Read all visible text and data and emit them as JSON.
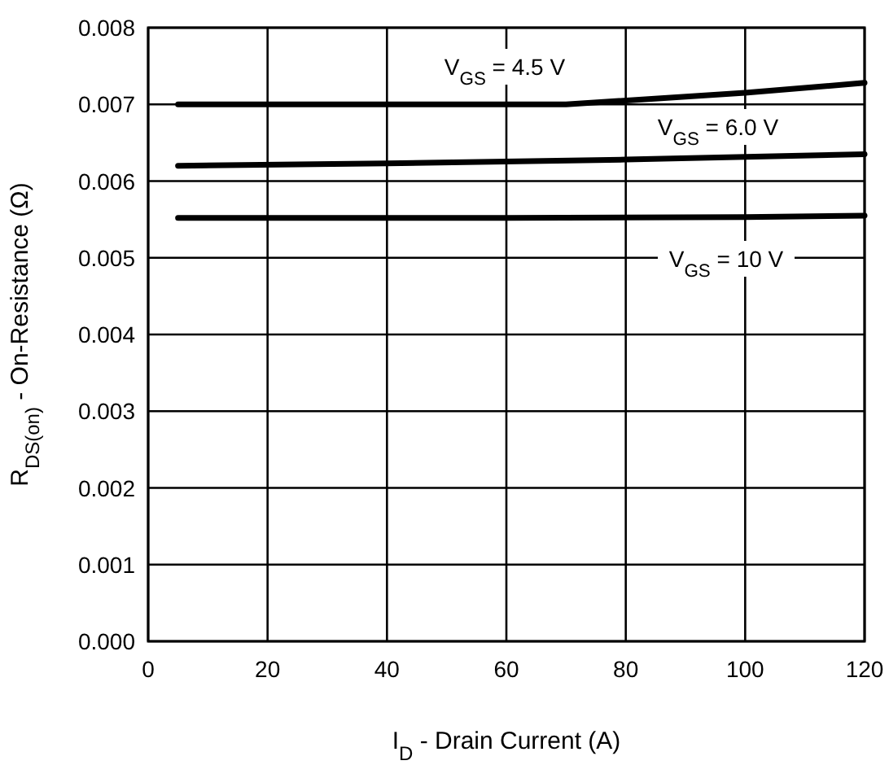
{
  "chart_data": {
    "type": "line",
    "xlabel": "I$_{D}$ - Drain Current (A)",
    "ylabel": "R$_{DS(on)}$ - On-Resistance (Ω)",
    "xlim": [
      0,
      120
    ],
    "ylim": [
      0,
      0.008
    ],
    "xticks": [
      0,
      20,
      40,
      60,
      80,
      100,
      120
    ],
    "yticks": [
      {
        "value": 0,
        "label": "0.000"
      },
      {
        "value": 0.001,
        "label": "0.001"
      },
      {
        "value": 0.002,
        "label": "0.002"
      },
      {
        "value": 0.003,
        "label": "0.003"
      },
      {
        "value": 0.004,
        "label": "0.004"
      },
      {
        "value": 0.005,
        "label": "0.005"
      },
      {
        "value": 0.006,
        "label": "0.006"
      },
      {
        "value": 0.007,
        "label": "0.007"
      },
      {
        "value": 0.008,
        "label": "0.008"
      }
    ],
    "grid": true,
    "line_style": "solid",
    "marker": "none",
    "series": [
      {
        "color": "#000000",
        "x": [
          5,
          40,
          70,
          100,
          120
        ],
        "values": [
          0.007,
          0.007,
          0.007,
          0.00715,
          0.00728
        ]
      },
      {
        "color": "#000000",
        "x": [
          5,
          40,
          80,
          120
        ],
        "values": [
          0.0062,
          0.00623,
          0.00628,
          0.00635
        ]
      },
      {
        "color": "#000000",
        "x": [
          5,
          60,
          100,
          120
        ],
        "values": [
          0.00552,
          0.00552,
          0.00553,
          0.00555
        ]
      }
    ],
    "annotations": [
      "V$_{GS}$ = 4.5 V",
      "V$_{GS}$ = 6.0 V",
      "V$_{GS}$ = 10 V"
    ]
  }
}
